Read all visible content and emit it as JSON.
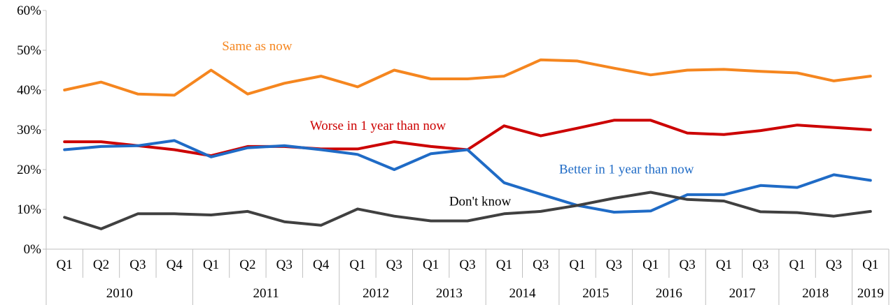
{
  "chart_data": {
    "type": "line",
    "xlabel": "",
    "ylabel": "",
    "ylim": [
      0,
      60
    ],
    "y_ticks": [
      "0%",
      "10%",
      "20%",
      "30%",
      "40%",
      "50%",
      "60%"
    ],
    "grid": false,
    "categories": [
      "Q1",
      "Q2",
      "Q3",
      "Q4",
      "Q1",
      "Q2",
      "Q3",
      "Q4",
      "Q1",
      "Q3",
      "Q1",
      "Q3",
      "Q1",
      "Q3",
      "Q1",
      "Q3",
      "Q1",
      "Q3",
      "Q1",
      "Q3",
      "Q1",
      "Q3",
      "Q1"
    ],
    "years": [
      {
        "label": "2010",
        "span": 4
      },
      {
        "label": "2011",
        "span": 4
      },
      {
        "label": "2012",
        "span": 2
      },
      {
        "label": "2013",
        "span": 2
      },
      {
        "label": "2014",
        "span": 2
      },
      {
        "label": "2015",
        "span": 2
      },
      {
        "label": "2016",
        "span": 2
      },
      {
        "label": "2017",
        "span": 2
      },
      {
        "label": "2018",
        "span": 2
      },
      {
        "label": "2019",
        "span": 1
      }
    ],
    "series": [
      {
        "name": "Same as now",
        "color": "#F5861F",
        "values": [
          40,
          42,
          39,
          38.7,
          45,
          39,
          41.7,
          43.5,
          40.8,
          45,
          42.8,
          42.8,
          43.5,
          47.6,
          47.3,
          45.5,
          43.8,
          45,
          45.2,
          44.7,
          44.3,
          42.3,
          43.5
        ]
      },
      {
        "name": "Worse in 1 year than now",
        "color": "#CC0000",
        "values": [
          27,
          27,
          26,
          25,
          23.5,
          25.8,
          25.8,
          25.2,
          25.2,
          27,
          25.8,
          25,
          31,
          28.5,
          30.4,
          32.4,
          32.4,
          29.2,
          28.8,
          29.8,
          31.2,
          30.6,
          30
        ]
      },
      {
        "name": "Better in 1 year than now",
        "color": "#1F6BC6",
        "values": [
          25,
          25.8,
          26,
          27.3,
          23.2,
          25.5,
          26,
          25,
          23.8,
          20,
          24,
          25,
          16.7,
          13.8,
          11,
          9.3,
          9.6,
          13.7,
          13.7,
          16,
          15.5,
          18.7,
          17.3
        ]
      },
      {
        "name": "Don't know",
        "color": "#404040",
        "values": [
          8,
          5.1,
          8.9,
          8.9,
          8.6,
          9.5,
          6.9,
          6,
          10.1,
          8.3,
          7.1,
          7.1,
          8.9,
          9.5,
          11,
          12.8,
          14.3,
          12.5,
          12.1,
          9.4,
          9.2,
          8.3,
          9.5
        ]
      }
    ],
    "series_label_colors": {
      "same": "#F5861F",
      "worse": "#CC0000",
      "better": "#1F6BC6",
      "dontknow": "#000000"
    }
  }
}
